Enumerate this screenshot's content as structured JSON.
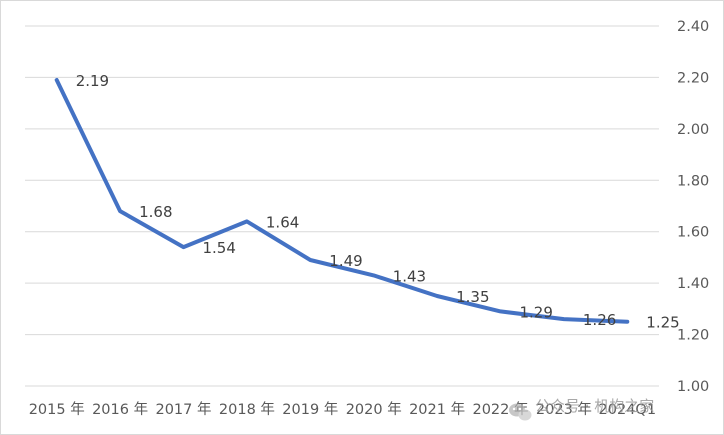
{
  "chart_data": {
    "type": "line",
    "title": "",
    "xlabel": "",
    "ylabel": "",
    "categories": [
      "2015 年",
      "2016 年",
      "2017 年",
      "2018 年",
      "2019 年",
      "2020 年",
      "2021 年",
      "2022 年",
      "2023 年",
      "2024Q1"
    ],
    "series": [
      {
        "values": [
          2.19,
          1.68,
          1.54,
          1.64,
          1.49,
          1.43,
          1.35,
          1.29,
          1.26,
          1.25
        ],
        "data_labels": [
          "2.19",
          "1.68",
          "1.54",
          "1.64",
          "1.49",
          "1.43",
          "1.35",
          "1.29",
          "1.26",
          "1.25"
        ],
        "color": "#4472C4"
      }
    ],
    "ylim": [
      1.0,
      2.4
    ],
    "yticks": [
      1.0,
      1.2,
      1.4,
      1.6,
      1.8,
      2.0,
      2.2,
      2.4
    ],
    "ytick_labels": [
      "1.00",
      "1.20",
      "1.40",
      "1.60",
      "1.80",
      "2.00",
      "2.20",
      "2.40"
    ],
    "y_axis_position": "right",
    "grid": true,
    "legend": "none",
    "gridline_color": "#d9d9d9"
  },
  "watermark": {
    "text": "公众号 · 机构之家",
    "icon": "wechat-icon"
  }
}
